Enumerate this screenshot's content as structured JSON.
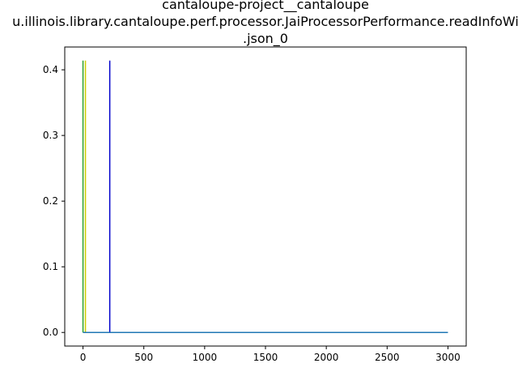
{
  "chart_data": {
    "type": "line",
    "title_lines": [
      "cantaloupe-project__cantaloupe",
      "u.illinois.library.cantaloupe.perf.processor.JaiProcessorPerformance.readInfoWi",
      ".json_0"
    ],
    "xlabel": "",
    "ylabel": "",
    "xlim": [
      -150,
      3150
    ],
    "ylim": [
      -0.0207,
      0.4347
    ],
    "xticks": [
      0,
      500,
      1000,
      1500,
      2000,
      2500,
      3000
    ],
    "yticks": [
      0.0,
      0.1,
      0.2,
      0.3,
      0.4
    ],
    "ytick_labels": [
      "0.0",
      "0.1",
      "0.2",
      "0.3",
      "0.4"
    ],
    "grid": false,
    "series": [
      {
        "color": "#1f77b4",
        "style": "line",
        "x": [
          0,
          3000
        ],
        "y": [
          0.0,
          0.0
        ]
      },
      {
        "color": "#2ca02c",
        "style": "vline",
        "x": 0,
        "y": [
          0.0,
          0.414
        ]
      },
      {
        "color": "#cccc00",
        "style": "vline",
        "x": 20,
        "y": [
          0.0,
          0.414
        ]
      },
      {
        "color": "#0000cc",
        "style": "vline",
        "x": 220,
        "y": [
          0.0,
          0.414
        ]
      }
    ]
  }
}
